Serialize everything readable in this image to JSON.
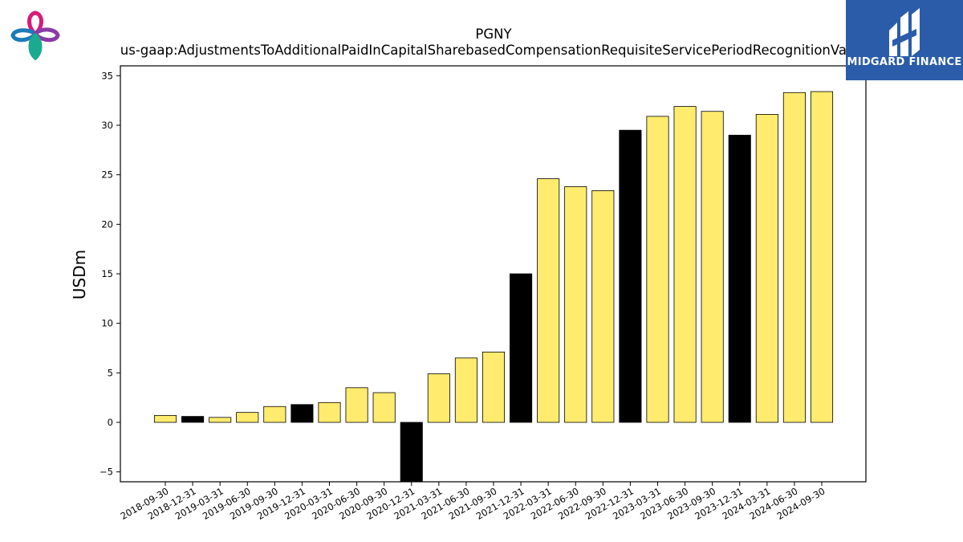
{
  "chart_data": {
    "type": "bar",
    "title": "PGNY",
    "subtitle": "us-gaap:AdjustmentsToAdditionalPaidInCapitalSharebasedCompensationRequisiteServicePeriodRecognitionValue",
    "ylabel": "USDm",
    "xlabel": "",
    "ylim": [
      -6,
      36
    ],
    "yticks": [
      -5,
      0,
      5,
      10,
      15,
      20,
      25,
      30,
      35
    ],
    "grid": false,
    "categories": [
      "2018-09-30",
      "2018-12-31",
      "2019-03-31",
      "2019-06-30",
      "2019-09-30",
      "2019-12-31",
      "2020-03-31",
      "2020-06-30",
      "2020-09-30",
      "2020-12-31",
      "2021-03-31",
      "2021-06-30",
      "2021-09-30",
      "2021-12-31",
      "2022-03-31",
      "2022-06-30",
      "2022-09-30",
      "2022-12-31",
      "2023-03-31",
      "2023-06-30",
      "2023-09-30",
      "2023-12-31",
      "2024-03-31",
      "2024-06-30",
      "2024-09-30"
    ],
    "values": [
      0.7,
      0.6,
      0.5,
      1.0,
      1.6,
      1.8,
      2.0,
      3.5,
      3.0,
      -6.0,
      4.9,
      6.5,
      7.1,
      15.0,
      24.6,
      23.8,
      23.4,
      29.5,
      30.9,
      31.9,
      31.4,
      29.0,
      31.1,
      33.3,
      33.4
    ],
    "annual_flags": [
      false,
      true,
      false,
      false,
      false,
      true,
      false,
      false,
      false,
      true,
      false,
      false,
      false,
      true,
      false,
      false,
      false,
      true,
      false,
      false,
      false,
      true,
      false,
      false,
      false
    ],
    "colors": {
      "quarter": "#ffeb6e",
      "annual": "#000000",
      "edge": "#000000"
    }
  },
  "brand": {
    "name": "MIDGARD FINANCE",
    "bg_color": "#2a5caa"
  },
  "icons": {
    "top_left": "four-petal-logo-icon",
    "top_right": "midgard-finance-logo-icon"
  }
}
